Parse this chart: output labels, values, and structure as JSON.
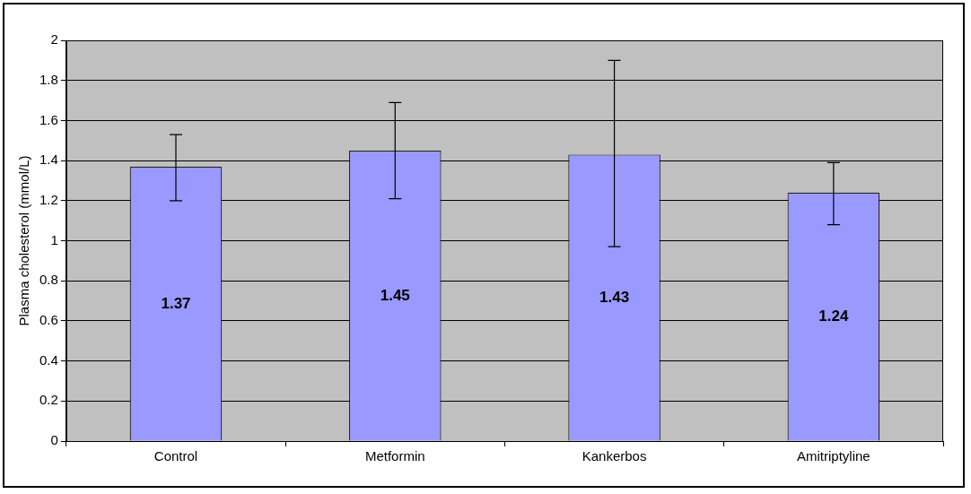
{
  "chart_data": {
    "type": "bar",
    "ylabel": "Plasma cholesterol (mmol/L)",
    "categories": [
      "Control",
      "Metformin",
      "Kankerbos",
      "Amitriptyline"
    ],
    "values": [
      1.37,
      1.45,
      1.43,
      1.24
    ],
    "errors": [
      [
        1.2,
        1.53
      ],
      [
        1.21,
        1.69
      ],
      [
        0.97,
        1.9
      ],
      [
        1.08,
        1.39
      ]
    ],
    "color": "#9999ff",
    "ylim": [
      0,
      2
    ],
    "yticks": [
      0,
      0.2,
      0.4,
      0.6,
      0.8,
      1,
      1.2,
      1.4,
      1.6,
      1.8,
      2
    ],
    "grid": "y",
    "data_labels": true,
    "legend": false
  }
}
